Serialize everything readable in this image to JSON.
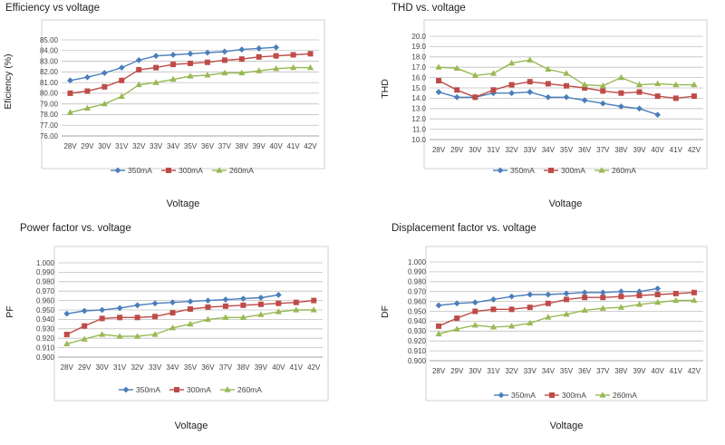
{
  "colors": {
    "series": [
      "#4a7ebb",
      "#be4b48",
      "#98b954"
    ],
    "grid": "#bfbfbf",
    "axis": "#888888",
    "frame": "#d0d0d0",
    "text": "#444444",
    "title": "#222222"
  },
  "chart_data": [
    {
      "type": "line",
      "title": "Efficiency vs voltage",
      "xlabel": "Voltage",
      "ylabel": "Eficiency (%)",
      "ylim": [
        76,
        85
      ],
      "ystep": 1,
      "yticks": [
        "76.00",
        "77.00",
        "78.00",
        "79.00",
        "80.00",
        "81.00",
        "82.00",
        "83.00",
        "84.00",
        "85.00"
      ],
      "categories": [
        "28V",
        "29V",
        "30V",
        "31V",
        "32V",
        "33V",
        "34V",
        "35V",
        "36V",
        "37V",
        "38V",
        "39V",
        "40V",
        "41V",
        "42V"
      ],
      "legend_position": "bottom",
      "series": [
        {
          "name": "350mA",
          "marker": "diamond",
          "values": [
            81.2,
            81.5,
            81.9,
            82.4,
            83.1,
            83.5,
            83.6,
            83.7,
            83.8,
            83.9,
            84.1,
            84.2,
            84.3,
            null,
            null
          ]
        },
        {
          "name": "300mA",
          "marker": "square",
          "values": [
            80.0,
            80.2,
            80.6,
            81.2,
            82.2,
            82.4,
            82.7,
            82.8,
            82.9,
            83.1,
            83.2,
            83.4,
            83.5,
            83.6,
            83.7
          ]
        },
        {
          "name": "260mA",
          "marker": "triangle",
          "values": [
            78.2,
            78.6,
            79.0,
            79.7,
            80.8,
            81.0,
            81.3,
            81.6,
            81.7,
            81.9,
            81.9,
            82.1,
            82.3,
            82.4,
            82.4
          ]
        }
      ]
    },
    {
      "type": "line",
      "title": "THD vs. voltage",
      "xlabel": "Voltage",
      "ylabel": "THD",
      "ylim": [
        10,
        20
      ],
      "ystep": 1,
      "yticks": [
        "10.0",
        "11.0",
        "12.0",
        "13.0",
        "14.0",
        "15.0",
        "16.0",
        "17.0",
        "18.0",
        "19.0",
        "20.0"
      ],
      "categories": [
        "28V",
        "29V",
        "30V",
        "31V",
        "32V",
        "33V",
        "34V",
        "35V",
        "36V",
        "37V",
        "38V",
        "39V",
        "40V",
        "41V",
        "42V"
      ],
      "legend_position": "bottom",
      "series": [
        {
          "name": "350mA",
          "marker": "diamond",
          "values": [
            14.6,
            14.1,
            14.1,
            14.5,
            14.5,
            14.6,
            14.1,
            14.1,
            13.8,
            13.5,
            13.2,
            13.0,
            12.4,
            null,
            null
          ]
        },
        {
          "name": "300mA",
          "marker": "square",
          "values": [
            15.7,
            14.8,
            14.1,
            14.8,
            15.3,
            15.6,
            15.4,
            15.2,
            15.0,
            14.7,
            14.5,
            14.6,
            14.2,
            14.0,
            14.2
          ]
        },
        {
          "name": "260mA",
          "marker": "triangle",
          "values": [
            17.0,
            16.9,
            16.2,
            16.4,
            17.4,
            17.7,
            16.8,
            16.4,
            15.3,
            15.2,
            16.0,
            15.3,
            15.4,
            15.3,
            15.3
          ]
        }
      ]
    },
    {
      "type": "line",
      "title": "Power factor vs. voltage",
      "xlabel": "Voltage",
      "ylabel": "PF",
      "ylim": [
        0.9,
        1.0
      ],
      "ystep": 0.01,
      "yticks": [
        "0.900",
        "0.910",
        "0.920",
        "0.930",
        "0.940",
        "0.950",
        "0.960",
        "0.970",
        "0.980",
        "0.990",
        "1.000"
      ],
      "categories": [
        "28V",
        "29V",
        "30V",
        "31V",
        "32V",
        "33V",
        "34V",
        "35V",
        "36V",
        "37V",
        "38V",
        "39V",
        "40V",
        "41V",
        "42V"
      ],
      "legend_position": "bottom",
      "series": [
        {
          "name": "350mA",
          "marker": "diamond",
          "values": [
            0.946,
            0.949,
            0.95,
            0.952,
            0.955,
            0.957,
            0.958,
            0.959,
            0.96,
            0.961,
            0.962,
            0.963,
            0.966,
            null,
            null
          ]
        },
        {
          "name": "300mA",
          "marker": "square",
          "values": [
            0.924,
            0.933,
            0.941,
            0.942,
            0.942,
            0.943,
            0.947,
            0.951,
            0.953,
            0.954,
            0.955,
            0.956,
            0.957,
            0.958,
            0.96
          ]
        },
        {
          "name": "260mA",
          "marker": "triangle",
          "values": [
            0.914,
            0.919,
            0.924,
            0.922,
            0.922,
            0.924,
            0.931,
            0.935,
            0.94,
            0.942,
            0.942,
            0.945,
            0.948,
            0.95,
            0.95
          ]
        }
      ]
    },
    {
      "type": "line",
      "title": "Displacement factor vs. voltage",
      "xlabel": "Voltage",
      "ylabel": "DF",
      "ylim": [
        0.9,
        1.0
      ],
      "ystep": 0.01,
      "yticks": [
        "0.900",
        "0.910",
        "0.920",
        "0.930",
        "0.940",
        "0.950",
        "0.960",
        "0.970",
        "0.980",
        "0.990",
        "1.000"
      ],
      "categories": [
        "28V",
        "29V",
        "30V",
        "31V",
        "32V",
        "33V",
        "34V",
        "35V",
        "36V",
        "37V",
        "38V",
        "39V",
        "40V",
        "41V",
        "42V"
      ],
      "legend_position": "bottom",
      "series": [
        {
          "name": "350mA",
          "marker": "diamond",
          "values": [
            0.956,
            0.958,
            0.959,
            0.962,
            0.965,
            0.967,
            0.967,
            0.968,
            0.969,
            0.969,
            0.97,
            0.97,
            0.973,
            null,
            null
          ]
        },
        {
          "name": "300mA",
          "marker": "square",
          "values": [
            0.935,
            0.943,
            0.95,
            0.952,
            0.952,
            0.954,
            0.958,
            0.962,
            0.964,
            0.964,
            0.965,
            0.966,
            0.967,
            0.968,
            0.969
          ]
        },
        {
          "name": "260mA",
          "marker": "triangle",
          "values": [
            0.927,
            0.932,
            0.936,
            0.934,
            0.935,
            0.938,
            0.944,
            0.947,
            0.951,
            0.953,
            0.954,
            0.957,
            0.959,
            0.961,
            0.961
          ]
        }
      ]
    }
  ]
}
